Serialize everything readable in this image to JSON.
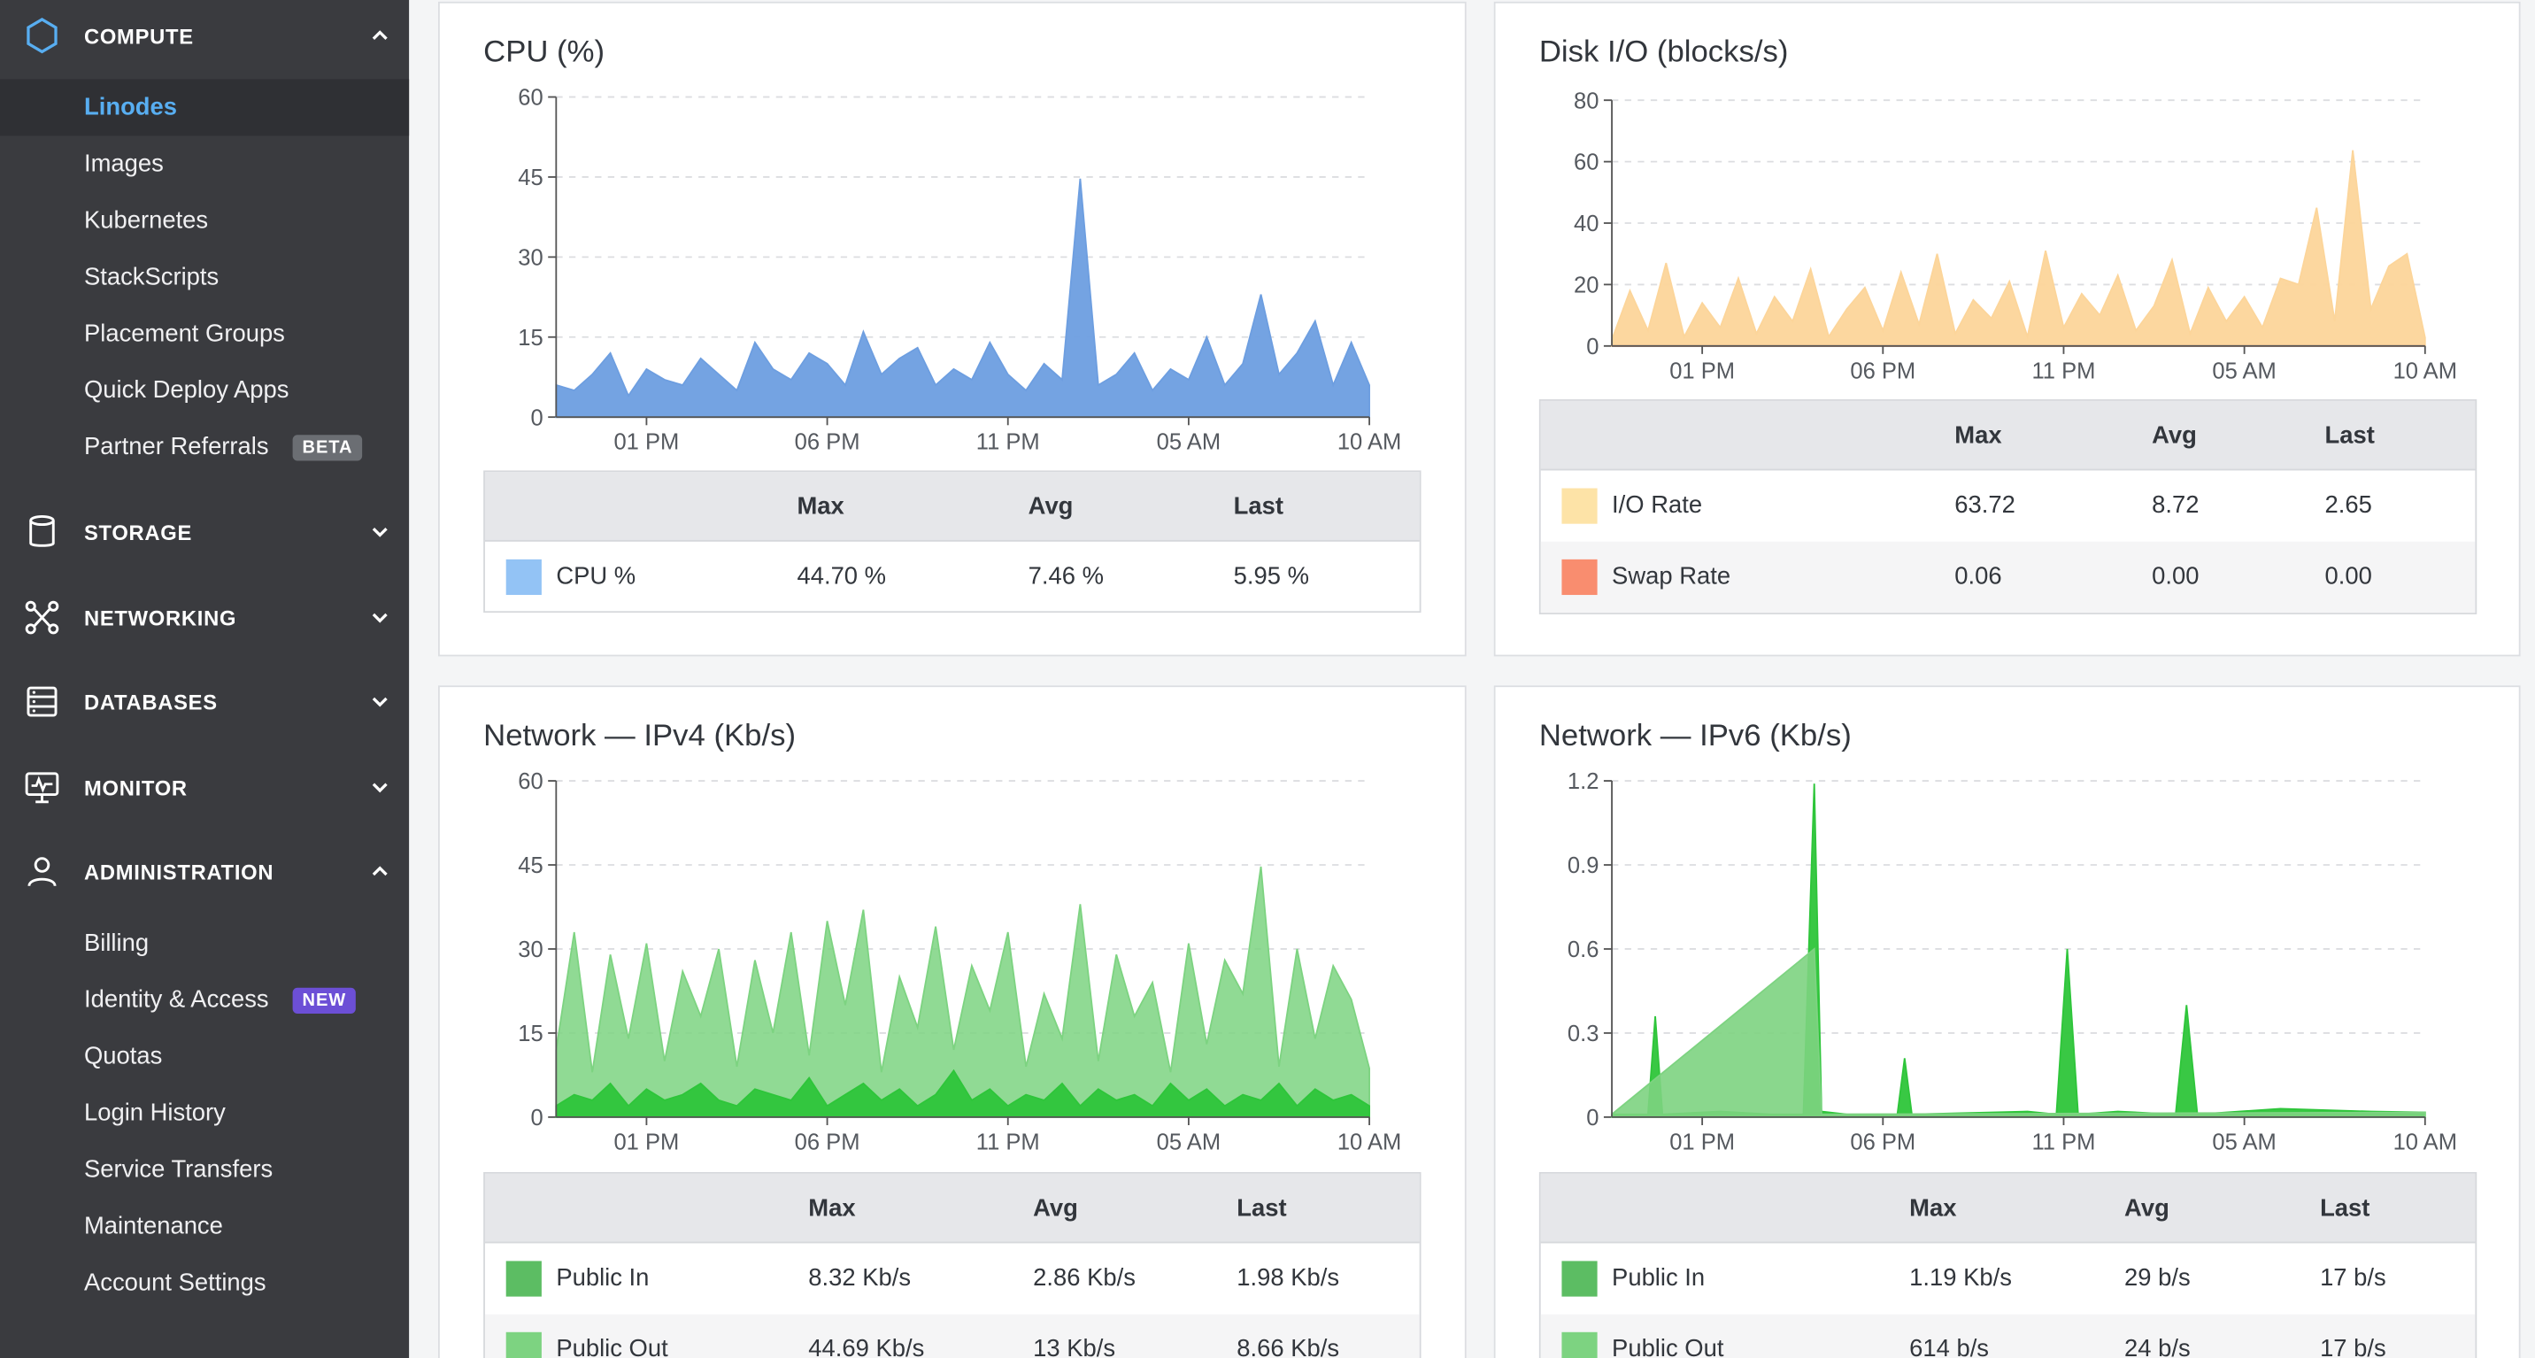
{
  "sidebar": {
    "sections": [
      {
        "label": "COMPUTE",
        "icon": "hexagon-icon",
        "expanded": true
      },
      {
        "label": "STORAGE",
        "icon": "storage-icon",
        "expanded": false
      },
      {
        "label": "NETWORKING",
        "icon": "networking-icon",
        "expanded": false
      },
      {
        "label": "DATABASES",
        "icon": "databases-icon",
        "expanded": false
      },
      {
        "label": "MONITOR",
        "icon": "monitor-icon",
        "expanded": false
      },
      {
        "label": "ADMINISTRATION",
        "icon": "user-icon",
        "expanded": true
      }
    ],
    "compute_items": [
      {
        "label": "Linodes",
        "active": true
      },
      {
        "label": "Images"
      },
      {
        "label": "Kubernetes"
      },
      {
        "label": "StackScripts"
      },
      {
        "label": "Placement Groups"
      },
      {
        "label": "Quick Deploy Apps"
      },
      {
        "label": "Partner Referrals",
        "badge": "BETA"
      }
    ],
    "admin_items": [
      {
        "label": "Billing"
      },
      {
        "label": "Identity & Access",
        "badge": "NEW"
      },
      {
        "label": "Quotas"
      },
      {
        "label": "Login History"
      },
      {
        "label": "Service Transfers"
      },
      {
        "label": "Maintenance"
      },
      {
        "label": "Account Settings"
      }
    ]
  },
  "colors": {
    "cpu": "#6d9ee0",
    "cpu_swatch": "#93c3f5",
    "io": "#fcd59a",
    "io_swatch": "#fde3a7",
    "swap": "#f98d6f",
    "net_in": "#2ec53a",
    "net_out": "#7dd381",
    "swatch_in": "#5cbd63",
    "swatch_out": "#7dd381",
    "active_link": "#58aef1",
    "badge_new": "#6c4fd6"
  },
  "x_ticks": [
    "01 PM",
    "06 PM",
    "11 PM",
    "05 AM",
    "10 AM"
  ],
  "table_headers": {
    "max": "Max",
    "avg": "Avg",
    "last": "Last"
  },
  "charts": [
    {
      "title": "CPU (%)",
      "y_ticks": [
        "0",
        "15",
        "30",
        "45",
        "60"
      ],
      "legend": [
        {
          "label": "CPU %",
          "max": "44.70 %",
          "avg": "7.46 %",
          "last": "5.95 %"
        }
      ]
    },
    {
      "title": "Disk I/O (blocks/s)",
      "y_ticks": [
        "0",
        "20",
        "40",
        "60",
        "80"
      ],
      "legend": [
        {
          "label": "I/O Rate",
          "max": "63.72",
          "avg": "8.72",
          "last": "2.65"
        },
        {
          "label": "Swap Rate",
          "max": "0.06",
          "avg": "0.00",
          "last": "0.00"
        }
      ]
    },
    {
      "title": "Network — IPv4 (Kb/s)",
      "y_ticks": [
        "0",
        "15",
        "30",
        "45",
        "60"
      ],
      "legend": [
        {
          "label": "Public In",
          "max": "8.32 Kb/s",
          "avg": "2.86 Kb/s",
          "last": "1.98 Kb/s"
        },
        {
          "label": "Public Out",
          "max": "44.69 Kb/s",
          "avg": "13 Kb/s",
          "last": "8.66 Kb/s"
        }
      ]
    },
    {
      "title": "Network — IPv6 (Kb/s)",
      "y_ticks": [
        "0",
        "0.3",
        "0.6",
        "0.9",
        "1.2"
      ],
      "legend": [
        {
          "label": "Public In",
          "max": "1.19 Kb/s",
          "avg": "29 b/s",
          "last": "17 b/s"
        },
        {
          "label": "Public Out",
          "max": "614 b/s",
          "avg": "24 b/s",
          "last": "17 b/s"
        }
      ]
    }
  ],
  "chart_data": [
    {
      "type": "area",
      "title": "CPU (%)",
      "xlabel": "",
      "ylabel": "",
      "x_ticks": [
        "01 PM",
        "06 PM",
        "11 PM",
        "05 AM",
        "10 AM"
      ],
      "ylim": [
        0,
        60
      ],
      "grid": true,
      "series": [
        {
          "name": "CPU %",
          "x": [
            0,
            0.5,
            1,
            1.5,
            2,
            2.5,
            3,
            3.5,
            4,
            4.5,
            5,
            5.5,
            6,
            6.5,
            7,
            7.5,
            8,
            8.5,
            9,
            9.5,
            10,
            10.5,
            11,
            11.5,
            12,
            12.5,
            13,
            13.5,
            14,
            14.5,
            15,
            15.5,
            16,
            16.5,
            17,
            17.5,
            18,
            18.5,
            19,
            19.5,
            20,
            20.5,
            21,
            21.5,
            22,
            22.5
          ],
          "values": [
            6,
            5,
            8,
            12,
            4,
            9,
            7,
            6,
            11,
            8,
            5,
            14,
            9,
            7,
            12,
            10,
            6,
            16,
            8,
            11,
            13,
            6,
            9,
            7,
            14,
            8,
            5,
            10,
            7,
            44.7,
            6,
            8,
            12,
            5,
            9,
            7,
            15,
            6,
            10,
            23,
            8,
            12,
            18,
            6,
            14,
            6
          ]
        }
      ]
    },
    {
      "type": "area",
      "title": "Disk I/O (blocks/s)",
      "xlabel": "",
      "ylabel": "",
      "x_ticks": [
        "01 PM",
        "06 PM",
        "11 PM",
        "05 AM",
        "10 AM"
      ],
      "ylim": [
        0,
        80
      ],
      "grid": true,
      "series": [
        {
          "name": "I/O Rate",
          "x": [
            0,
            0.5,
            1,
            1.5,
            2,
            2.5,
            3,
            3.5,
            4,
            4.5,
            5,
            5.5,
            6,
            6.5,
            7,
            7.5,
            8,
            8.5,
            9,
            9.5,
            10,
            10.5,
            11,
            11.5,
            12,
            12.5,
            13,
            13.5,
            14,
            14.5,
            15,
            15.5,
            16,
            16.5,
            17,
            17.5,
            18,
            18.5,
            19,
            19.5,
            20,
            20.5,
            21,
            21.5,
            22,
            22.5
          ],
          "values": [
            2,
            18,
            5,
            27,
            3,
            14,
            6,
            22,
            4,
            16,
            8,
            25,
            3,
            12,
            19,
            5,
            24,
            7,
            30,
            4,
            15,
            9,
            21,
            3,
            31,
            6,
            17,
            10,
            23,
            5,
            13,
            28,
            4,
            19,
            8,
            16,
            6,
            22,
            20,
            45,
            8,
            63.7,
            12,
            26,
            30,
            2.7
          ]
        },
        {
          "name": "Swap Rate",
          "x": [
            0,
            22.5
          ],
          "values": [
            0.0,
            0.0
          ]
        }
      ]
    },
    {
      "type": "area",
      "title": "Network — IPv4 (Kb/s)",
      "xlabel": "",
      "ylabel": "",
      "x_ticks": [
        "01 PM",
        "06 PM",
        "11 PM",
        "05 AM",
        "10 AM"
      ],
      "ylim": [
        0,
        60
      ],
      "grid": true,
      "series": [
        {
          "name": "Public Out",
          "x": [
            0,
            0.5,
            1,
            1.5,
            2,
            2.5,
            3,
            3.5,
            4,
            4.5,
            5,
            5.5,
            6,
            6.5,
            7,
            7.5,
            8,
            8.5,
            9,
            9.5,
            10,
            10.5,
            11,
            11.5,
            12,
            12.5,
            13,
            13.5,
            14,
            14.5,
            15,
            15.5,
            16,
            16.5,
            17,
            17.5,
            18,
            18.5,
            19,
            19.5,
            20,
            20.5,
            21,
            21.5,
            22,
            22.5
          ],
          "values": [
            12,
            33,
            8,
            29,
            14,
            31,
            10,
            26,
            18,
            30,
            9,
            28,
            15,
            33,
            11,
            35,
            20,
            37,
            8,
            25,
            16,
            34,
            12,
            27,
            19,
            33,
            9,
            22,
            14,
            38,
            10,
            29,
            18,
            24,
            8,
            31,
            13,
            28,
            22,
            44.7,
            9,
            30,
            14,
            27,
            21,
            8.7
          ]
        },
        {
          "name": "Public In",
          "x": [
            0,
            0.5,
            1,
            1.5,
            2,
            2.5,
            3,
            3.5,
            4,
            4.5,
            5,
            5.5,
            6,
            6.5,
            7,
            7.5,
            8,
            8.5,
            9,
            9.5,
            10,
            10.5,
            11,
            11.5,
            12,
            12.5,
            13,
            13.5,
            14,
            14.5,
            15,
            15.5,
            16,
            16.5,
            17,
            17.5,
            18,
            18.5,
            19,
            19.5,
            20,
            20.5,
            21,
            21.5,
            22,
            22.5
          ],
          "values": [
            2,
            4,
            3,
            6,
            2,
            5,
            3,
            4,
            6,
            3,
            2,
            5,
            4,
            3,
            7,
            2,
            4,
            6,
            3,
            5,
            2,
            4,
            8.3,
            3,
            5,
            2,
            4,
            3,
            6,
            2,
            5,
            3,
            4,
            2,
            6,
            3,
            5,
            2,
            4,
            3,
            6,
            2,
            5,
            3,
            4,
            2.0
          ]
        }
      ]
    },
    {
      "type": "area",
      "title": "Network — IPv6 (Kb/s)",
      "xlabel": "",
      "ylabel": "",
      "x_ticks": [
        "01 PM",
        "06 PM",
        "11 PM",
        "05 AM",
        "10 AM"
      ],
      "ylim": [
        0,
        1.2
      ],
      "grid": true,
      "series": [
        {
          "name": "Public In",
          "x": [
            0,
            1,
            1.2,
            1.4,
            3,
            4.4,
            5.3,
            5.6,
            5.8,
            6.5,
            7.9,
            8.1,
            8.3,
            11.5,
            12.3,
            12.6,
            12.9,
            14,
            15.6,
            15.9,
            16.2,
            18.5,
            21,
            22.5
          ],
          "values": [
            0.01,
            0.01,
            0.36,
            0.01,
            0.02,
            0.01,
            0.01,
            1.19,
            0.02,
            0.01,
            0.01,
            0.21,
            0.01,
            0.02,
            0.01,
            0.6,
            0.01,
            0.02,
            0.01,
            0.4,
            0.01,
            0.03,
            0.02,
            0.017
          ]
        },
        {
          "name": "Public Out",
          "x": [
            0,
            5.6,
            5.8,
            22.5
          ],
          "values": [
            0.01,
            0.6,
            0.01,
            0.017
          ]
        }
      ]
    }
  ]
}
